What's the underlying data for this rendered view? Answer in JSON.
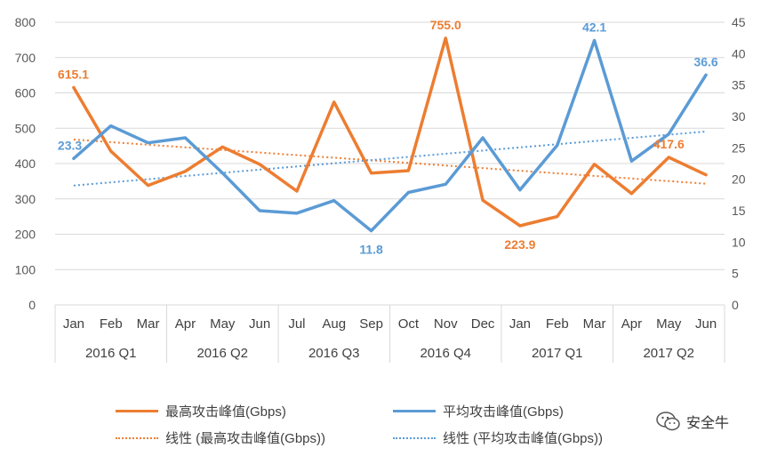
{
  "chart_data": {
    "type": "line",
    "months": [
      "Jan",
      "Feb",
      "Mar",
      "Apr",
      "May",
      "Jun",
      "Jul",
      "Aug",
      "Sep",
      "Oct",
      "Nov",
      "Dec",
      "Jan",
      "Feb",
      "Mar",
      "Apr",
      "May",
      "Jun"
    ],
    "quarters": [
      "2016 Q1",
      "2016 Q2",
      "2016 Q3",
      "2016 Q4",
      "2017 Q1",
      "2017 Q2"
    ],
    "y_left": {
      "min": 0,
      "max": 800,
      "step": 100
    },
    "y_right": {
      "min": 0,
      "max": 45,
      "step": 5
    },
    "series": [
      {
        "name": "最高攻击峰值(Gbps)",
        "axis": "left",
        "color": "#ed7d31",
        "values": [
          615.1,
          435,
          338,
          378,
          447,
          398,
          322,
          574,
          373,
          380,
          755.0,
          296,
          223.9,
          250,
          398,
          315,
          417.6,
          368
        ]
      },
      {
        "name": "平均攻击峰值(Gbps)",
        "axis": "right",
        "color": "#5b9bd5",
        "values": [
          23.3,
          28.5,
          25.8,
          26.6,
          21.0,
          15.0,
          14.6,
          16.6,
          11.8,
          17.9,
          19.2,
          26.6,
          18.3,
          25.4,
          42.1,
          22.9,
          27.2,
          36.6
        ]
      }
    ],
    "trendlines": [
      {
        "name": "线性 (最高攻击峰值(Gbps))",
        "axis": "left",
        "color": "#ed7d31",
        "start": 468,
        "end": 343
      },
      {
        "name": "线性 (平均攻击峰值(Gbps))",
        "axis": "right",
        "color": "#5b9bd5",
        "start": 19.0,
        "end": 27.6
      }
    ],
    "data_labels": [
      {
        "series": 0,
        "index": 0,
        "text": "615.1"
      },
      {
        "series": 0,
        "index": 10,
        "text": "755.0"
      },
      {
        "series": 0,
        "index": 12,
        "text": "223.9"
      },
      {
        "series": 0,
        "index": 16,
        "text": "417.6"
      },
      {
        "series": 1,
        "index": 0,
        "text": "23.3"
      },
      {
        "series": 1,
        "index": 8,
        "text": "11.8"
      },
      {
        "series": 1,
        "index": 14,
        "text": "42.1"
      },
      {
        "series": 1,
        "index": 17,
        "text": "36.6"
      }
    ],
    "grid": true,
    "legend_position": "bottom"
  },
  "legend": {
    "series1": "最高攻击峰值(Gbps)",
    "series2": "平均攻击峰值(Gbps)",
    "trend1": "线性 (最高攻击峰值(Gbps))",
    "trend2": "线性 (平均攻击峰值(Gbps))"
  },
  "watermark": {
    "text": "安全牛",
    "icon": "wechat-icon"
  }
}
